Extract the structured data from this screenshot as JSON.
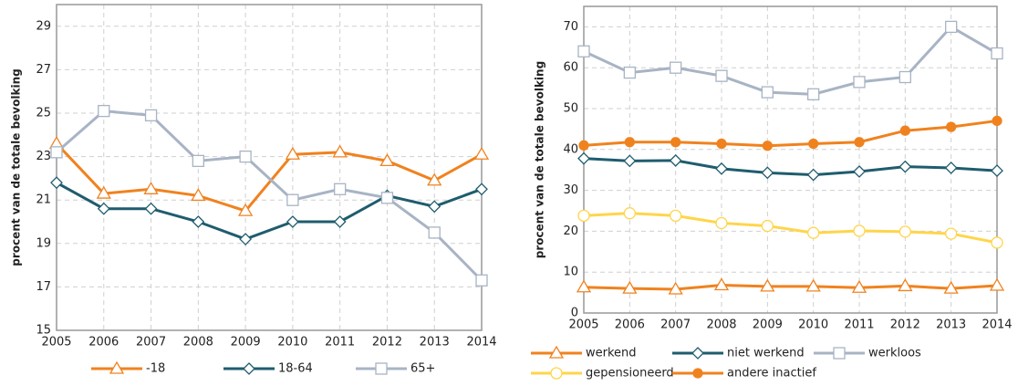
{
  "chart_data": [
    {
      "type": "line",
      "y_label": "procent van de totale bevolking",
      "x": [
        2005,
        2006,
        2007,
        2008,
        2009,
        2010,
        2011,
        2012,
        2013,
        2014
      ],
      "xlim": [
        2005,
        2014
      ],
      "xticks": [
        2005,
        2006,
        2007,
        2008,
        2009,
        2010,
        2011,
        2012,
        2013,
        2014
      ],
      "ylim": [
        15,
        30
      ],
      "yticks": [
        15,
        17,
        19,
        21,
        23,
        25,
        27,
        29
      ],
      "grid": true,
      "legend": "bottom",
      "series": [
        {
          "name": "-18",
          "color": "#f0821e",
          "marker": "triangle",
          "values": [
            23.6,
            21.3,
            21.5,
            21.2,
            20.5,
            23.1,
            23.2,
            22.8,
            21.9,
            23.1
          ]
        },
        {
          "name": "18-64",
          "color": "#1f5c6e",
          "marker": "diamond",
          "values": [
            21.8,
            20.6,
            20.6,
            20.0,
            19.2,
            20.0,
            20.0,
            21.2,
            20.7,
            21.5
          ]
        },
        {
          "name": "65+",
          "color": "#a8b4c4",
          "marker": "square",
          "values": [
            23.2,
            25.1,
            24.9,
            22.8,
            23.0,
            21.0,
            21.5,
            21.1,
            19.5,
            17.3
          ]
        }
      ]
    },
    {
      "type": "line",
      "y_label": "procent van de totale bevolking",
      "x": [
        2005,
        2006,
        2007,
        2008,
        2009,
        2010,
        2011,
        2012,
        2013,
        2014
      ],
      "xlim": [
        2005,
        2014
      ],
      "xticks": [
        2005,
        2006,
        2007,
        2008,
        2009,
        2010,
        2011,
        2012,
        2013,
        2014
      ],
      "ylim": [
        0,
        75
      ],
      "yticks": [
        0,
        10,
        20,
        30,
        40,
        50,
        60,
        70
      ],
      "grid": true,
      "legend": "bottom",
      "series": [
        {
          "name": "werkend",
          "color": "#f0821e",
          "marker": "triangle",
          "values": [
            6.3,
            6.0,
            5.8,
            6.8,
            6.5,
            6.5,
            6.2,
            6.6,
            6.0,
            6.7
          ]
        },
        {
          "name": "niet werkend",
          "color": "#1f5c6e",
          "marker": "diamond",
          "values": [
            37.8,
            37.2,
            37.3,
            35.3,
            34.3,
            33.8,
            34.6,
            35.8,
            35.5,
            34.8
          ]
        },
        {
          "name": "werkloos",
          "color": "#a8b4c4",
          "marker": "square",
          "values": [
            64.0,
            58.8,
            60.0,
            58.0,
            54.0,
            53.5,
            56.5,
            57.7,
            70.0,
            63.5
          ]
        },
        {
          "name": "gepensioneerd",
          "color": "#ffd54a",
          "marker": "circle",
          "values": [
            23.8,
            24.4,
            23.8,
            22.0,
            21.3,
            19.6,
            20.1,
            19.9,
            19.4,
            17.2
          ]
        },
        {
          "name": "andere inactief",
          "color": "#f0821e",
          "marker": "dot",
          "values": [
            41.0,
            41.8,
            41.8,
            41.4,
            40.9,
            41.4,
            41.8,
            44.6,
            45.5,
            47.0
          ]
        }
      ]
    }
  ]
}
